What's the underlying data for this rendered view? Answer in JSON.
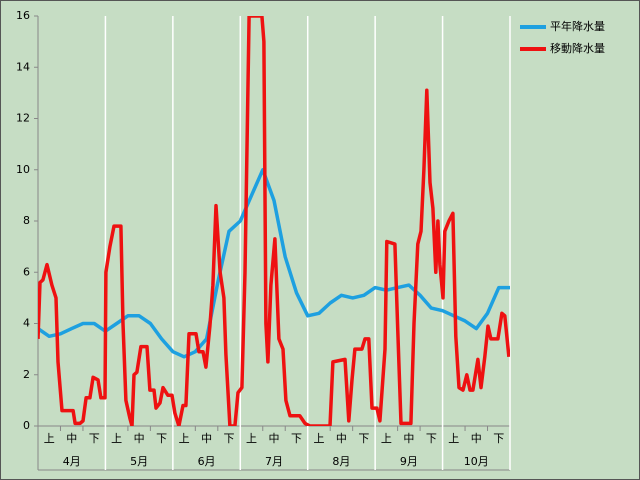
{
  "chart_data": {
    "type": "line",
    "categories": [
      "上",
      "中",
      "下",
      "上",
      "中",
      "下",
      "上",
      "中",
      "下",
      "上",
      "中",
      "下",
      "上",
      "中",
      "下",
      "上",
      "中",
      "下",
      "上",
      "中",
      "下"
    ],
    "groups": [
      "4月",
      "5月",
      "6月",
      "7月",
      "8月",
      "9月",
      "10月"
    ],
    "xlim": [
      0,
      21
    ],
    "ylim": [
      0,
      16
    ],
    "yticks": [
      0,
      2,
      4,
      6,
      8,
      10,
      12,
      14,
      16
    ],
    "legend": "top-right",
    "series": [
      {
        "name": "平年降水量",
        "color": "#1ea0e0",
        "x": [
          0,
          0.5,
          1,
          1.5,
          2,
          2.5,
          3,
          3.5,
          4,
          4.5,
          5,
          5.5,
          6,
          6.5,
          7,
          7.5,
          8,
          8.5,
          9,
          9.5,
          10,
          10.5,
          11,
          11.5,
          12,
          12.5,
          13,
          13.5,
          14,
          14.5,
          15,
          15.5,
          16,
          16.5,
          17,
          17.5,
          18,
          18.5,
          19,
          19.5,
          20,
          20.5,
          21
        ],
        "values": [
          3.8,
          3.5,
          3.6,
          3.8,
          4.0,
          4.0,
          3.7,
          4.0,
          4.3,
          4.3,
          4.0,
          3.4,
          2.9,
          2.7,
          2.9,
          3.4,
          5.6,
          7.6,
          8.0,
          9.0,
          10.0,
          8.8,
          6.6,
          5.2,
          4.3,
          4.4,
          4.8,
          5.1,
          5.0,
          5.1,
          5.4,
          5.3,
          5.4,
          5.5,
          5.1,
          4.6,
          4.5,
          4.3,
          4.1,
          3.8,
          4.4,
          5.4,
          5.4
        ]
      },
      {
        "name": "移動降水量",
        "color": "#ee1111",
        "x": [
          0,
          0.09,
          0.22,
          0.4,
          0.62,
          0.8,
          0.89,
          1.07,
          1.29,
          1.56,
          1.65,
          1.87,
          2.0,
          2.14,
          2.31,
          2.45,
          2.67,
          2.8,
          2.98,
          3.02,
          3.2,
          3.38,
          3.69,
          3.78,
          3.91,
          4.09,
          4.18,
          4.27,
          4.4,
          4.58,
          4.85,
          4.98,
          5.16,
          5.25,
          5.43,
          5.56,
          5.78,
          5.96,
          6.09,
          6.27,
          6.45,
          6.58,
          6.72,
          7.03,
          7.16,
          7.34,
          7.47,
          7.65,
          7.78,
          7.92,
          8.1,
          8.27,
          8.36,
          8.54,
          8.76,
          8.9,
          9.07,
          9.21,
          9.39,
          9.96,
          10.05,
          10.14,
          10.23,
          10.36,
          10.54,
          10.72,
          10.9,
          11.03,
          11.21,
          11.65,
          11.88,
          12.1,
          12.99,
          13.12,
          13.66,
          13.83,
          13.97,
          14.1,
          14.41,
          14.55,
          14.72,
          14.86,
          15.08,
          15.21,
          15.44,
          15.52,
          15.88,
          16.01,
          16.15,
          16.59,
          16.73,
          16.9,
          17.04,
          17.17,
          17.3,
          17.44,
          17.57,
          17.7,
          17.79,
          17.88,
          18.02,
          18.1,
          18.28,
          18.46,
          18.59,
          18.73,
          18.91,
          19.08,
          19.22,
          19.35,
          19.57,
          19.71,
          19.88,
          20.02,
          20.15,
          20.46,
          20.64,
          20.77,
          20.95
        ],
        "values": [
          3.4,
          5.6,
          5.7,
          6.3,
          5.5,
          5.0,
          2.5,
          0.6,
          0.6,
          0.6,
          0.1,
          0.1,
          0.2,
          1.1,
          1.1,
          1.9,
          1.8,
          1.1,
          1.1,
          6.0,
          7.0,
          7.8,
          7.8,
          4.0,
          1.0,
          0.3,
          0.0,
          2.0,
          2.1,
          3.1,
          3.1,
          1.4,
          1.4,
          0.7,
          0.9,
          1.5,
          1.2,
          1.2,
          0.5,
          0.0,
          0.8,
          0.8,
          3.6,
          3.6,
          2.9,
          2.9,
          2.3,
          3.9,
          5.5,
          8.6,
          6.0,
          5.0,
          2.8,
          0.0,
          0.0,
          1.3,
          1.5,
          6.0,
          16,
          16,
          15,
          4.0,
          2.5,
          5.5,
          7.3,
          3.4,
          3.0,
          1.0,
          0.4,
          0.4,
          0.1,
          0.0,
          0.0,
          2.5,
          2.6,
          0.2,
          1.8,
          3.0,
          3.0,
          3.4,
          3.4,
          0.7,
          0.7,
          0.2,
          3.0,
          7.2,
          7.1,
          3.7,
          0.1,
          0.1,
          4.0,
          7.1,
          7.6,
          10.0,
          13.1,
          9.5,
          8.5,
          6.0,
          8.0,
          6.3,
          5.0,
          7.6,
          8.0,
          8.3,
          3.5,
          1.5,
          1.4,
          2.0,
          1.4,
          1.4,
          2.6,
          1.5,
          2.7,
          3.9,
          3.4,
          3.4,
          4.4,
          4.3,
          2.7
        ]
      }
    ]
  }
}
